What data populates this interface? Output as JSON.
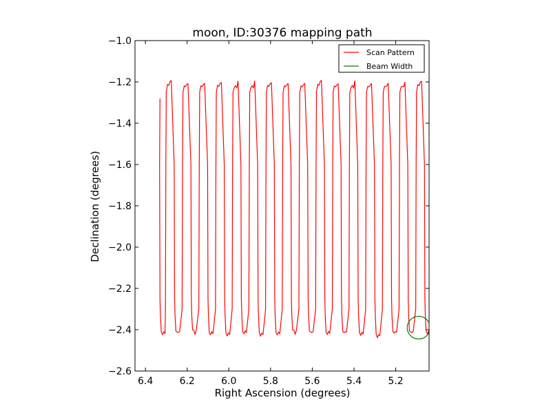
{
  "chart_data": {
    "type": "line",
    "title": "moon, ID:30376 mapping path",
    "xlabel": "Right Ascension (degrees)",
    "ylabel": "Declination (degrees)",
    "xlim": [
      6.45,
      5.04
    ],
    "ylim": [
      -2.6,
      -1.0
    ],
    "x_inverted": true,
    "xticks": [
      6.4,
      6.2,
      6.0,
      5.8,
      5.6,
      5.4,
      5.2
    ],
    "xtick_labels": [
      "6.4",
      "6.2",
      "6.0",
      "5.8",
      "5.6",
      "5.4",
      "5.2"
    ],
    "yticks": [
      -2.6,
      -2.4,
      -2.2,
      -2.0,
      -1.8,
      -1.6,
      -1.4,
      -1.2,
      -1.0
    ],
    "ytick_labels": [
      "−2.6",
      "−2.4",
      "−2.2",
      "−2.0",
      "−1.8",
      "−1.6",
      "−1.4",
      "−1.2",
      "−1.0"
    ],
    "grid": false,
    "legend_position": "top-right",
    "series": [
      {
        "name": "Scan Pattern",
        "color": "#ff0000",
        "start": [
          6.33,
          -1.28
        ],
        "legs_ra": [
          6.33,
          6.3,
          6.26,
          6.22,
          6.18,
          6.14,
          6.1,
          6.06,
          6.02,
          5.98,
          5.94,
          5.9,
          5.86,
          5.82,
          5.78,
          5.74,
          5.7,
          5.66,
          5.62,
          5.58,
          5.54,
          5.5,
          5.46,
          5.42,
          5.38,
          5.34,
          5.3,
          5.26,
          5.22,
          5.18,
          5.14,
          5.1,
          5.06
        ],
        "top_dec": -1.22,
        "bottom_dec": -2.41
      },
      {
        "name": "Beam Width",
        "color": "#008000",
        "center": [
          5.09,
          -2.39
        ],
        "radius_deg": 0.055
      }
    ]
  }
}
